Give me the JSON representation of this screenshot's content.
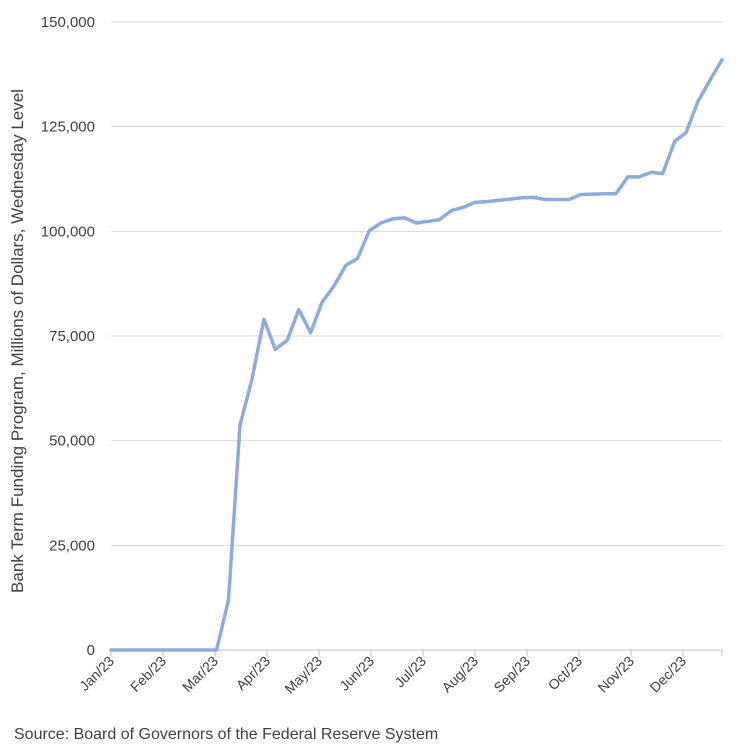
{
  "chart_data": {
    "type": "line",
    "ylabel": "Bank Term Funding Program, Millions of Dollars, Wednesday Level",
    "ylim": [
      0,
      150000
    ],
    "yticks": [
      0,
      25000,
      50000,
      75000,
      100000,
      125000,
      150000
    ],
    "ytick_labels": [
      "0",
      "25,000",
      "50,000",
      "75,000",
      "100,000",
      "125,000",
      "150,000"
    ],
    "x_tick_labels": [
      "Jan/23",
      "Feb/23",
      "Mar/23",
      "Apr/23",
      "May/23",
      "Jun/23",
      "Jul/23",
      "Aug/23",
      "Sep/23",
      "Oct/23",
      "Nov/23",
      "Dec/23"
    ],
    "grid": "horizontal",
    "line_color": "#8faadc",
    "series": [
      {
        "values": [
          [
            0,
            0
          ],
          [
            0.23,
            0
          ],
          [
            0.45,
            0
          ],
          [
            0.68,
            0
          ],
          [
            0.9,
            0
          ],
          [
            1.13,
            0
          ],
          [
            1.36,
            0
          ],
          [
            1.58,
            0
          ],
          [
            1.81,
            0
          ],
          [
            2.03,
            0
          ],
          [
            2.26,
            12000
          ],
          [
            2.48,
            53700
          ],
          [
            2.71,
            64600
          ],
          [
            2.94,
            79000
          ],
          [
            3.16,
            71800
          ],
          [
            3.39,
            74000
          ],
          [
            3.61,
            81300
          ],
          [
            3.84,
            75800
          ],
          [
            4.06,
            83100
          ],
          [
            4.29,
            87000
          ],
          [
            4.52,
            91900
          ],
          [
            4.74,
            93500
          ],
          [
            4.97,
            100200
          ],
          [
            5.19,
            102000
          ],
          [
            5.42,
            103000
          ],
          [
            5.65,
            103200
          ],
          [
            5.87,
            102000
          ],
          [
            6.1,
            102400
          ],
          [
            6.32,
            102800
          ],
          [
            6.55,
            105000
          ],
          [
            6.77,
            105700
          ],
          [
            7.0,
            106900
          ],
          [
            7.23,
            107100
          ],
          [
            7.45,
            107400
          ],
          [
            7.68,
            107700
          ],
          [
            7.9,
            108000
          ],
          [
            8.13,
            108100
          ],
          [
            8.35,
            107600
          ],
          [
            8.58,
            107600
          ],
          [
            8.81,
            107600
          ],
          [
            9.03,
            108800
          ],
          [
            9.26,
            108900
          ],
          [
            9.48,
            109000
          ],
          [
            9.71,
            109000
          ],
          [
            9.94,
            113000
          ],
          [
            10.16,
            113000
          ],
          [
            10.39,
            114100
          ],
          [
            10.61,
            113800
          ],
          [
            10.84,
            121500
          ],
          [
            11.06,
            123600
          ],
          [
            11.29,
            131100
          ],
          [
            11.52,
            136100
          ],
          [
            11.75,
            141000
          ]
        ]
      }
    ]
  },
  "source": "Source: Board of Governors of the Federal Reserve System"
}
